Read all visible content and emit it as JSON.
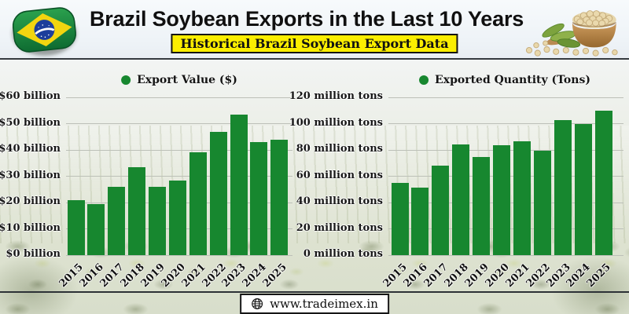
{
  "header": {
    "title": "Brazil Soybean Exports in the Last 10 Years",
    "subtitle": "Historical Brazil Soybean Export Data"
  },
  "footer": {
    "website": "www.tradeimex.in"
  },
  "colors": {
    "bar_green": "#17872f",
    "legend_green": "#17872f",
    "subtitle_bg": "#fbee00",
    "grid": "#bcc0b8"
  },
  "chart_data": [
    {
      "type": "bar",
      "legend": "Export Value ($)",
      "categories": [
        "2015",
        "2016",
        "2017",
        "2018",
        "2019",
        "2020",
        "2021",
        "2022",
        "2023",
        "2024",
        "2025"
      ],
      "values": [
        21,
        19.5,
        26,
        33.5,
        26,
        28.5,
        39,
        47,
        53.5,
        43,
        44
      ],
      "ylim": [
        0,
        60
      ],
      "yticks": [
        0,
        10,
        20,
        30,
        40,
        50,
        60
      ],
      "ytick_labels": [
        "$0 billion",
        "$10 billion",
        "$20 billion",
        "$30 billion",
        "$40 billion",
        "$50 billion",
        "$60 billion"
      ],
      "xlabel": "",
      "ylabel": "",
      "grid": true,
      "legend_position": "top-center"
    },
    {
      "type": "bar",
      "legend": "Exported Quantity (Tons)",
      "categories": [
        "2015",
        "2016",
        "2017",
        "2018",
        "2019",
        "2020",
        "2021",
        "2022",
        "2023",
        "2024",
        "2025"
      ],
      "values": [
        55,
        51.5,
        68,
        84,
        74.5,
        83.5,
        86.5,
        79.5,
        102.5,
        100,
        110
      ],
      "ylim": [
        0,
        120
      ],
      "yticks": [
        0,
        20,
        40,
        60,
        80,
        100,
        120
      ],
      "ytick_labels": [
        "0 million tons",
        "20 million tons",
        "40 million tons",
        "60 million tons",
        "80 million tons",
        "100 million tons",
        "120 million tons"
      ],
      "xlabel": "",
      "ylabel": "",
      "grid": true,
      "legend_position": "top-center"
    }
  ]
}
